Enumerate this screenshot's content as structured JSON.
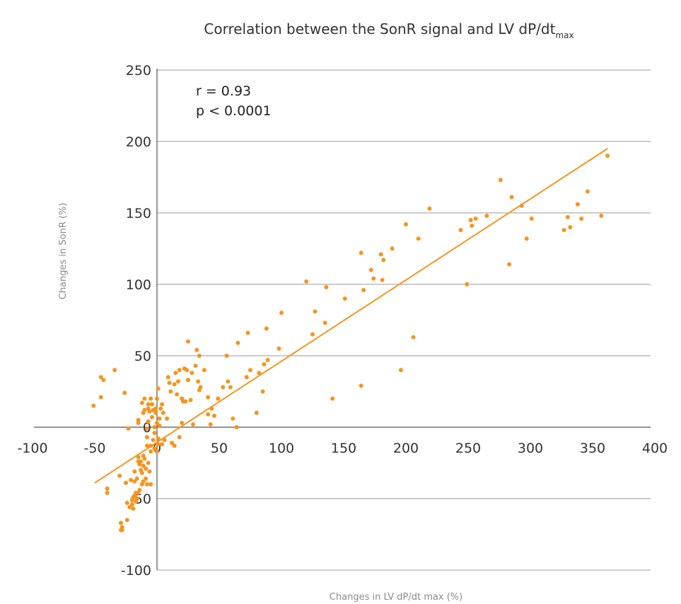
{
  "chart_data": {
    "type": "scatter",
    "title": "Correlation between the SonR signal and LV dP/dt",
    "title_subscript": "max",
    "xlabel": "Changes in LV dP/dt max (%)",
    "ylabel": "Changes in SonR (%)",
    "xlim": [
      -100,
      400
    ],
    "ylim": [
      -100,
      250
    ],
    "x_ticks": [
      "-100",
      "-50",
      "0",
      "50",
      "100",
      "150",
      "200",
      "250",
      "300",
      "350",
      "400"
    ],
    "y_ticks": [
      "250",
      "200",
      "150",
      "100",
      "50",
      "0",
      "-50",
      "-100"
    ],
    "grid": "horizontal",
    "annotations": [
      "r = 0.93",
      "p < 0.0001"
    ],
    "point_color": "#f7941d",
    "line_color": "#f7941d",
    "trendline": {
      "x": [
        -50,
        362
      ],
      "y": [
        -39,
        195
      ]
    },
    "points": [
      [
        -51,
        15
      ],
      [
        -45,
        21
      ],
      [
        -45,
        35
      ],
      [
        -43,
        33
      ],
      [
        -40,
        -43
      ],
      [
        -40,
        -46
      ],
      [
        -34,
        40
      ],
      [
        -30,
        -34
      ],
      [
        -29,
        -67
      ],
      [
        -29,
        -72
      ],
      [
        -28,
        -70
      ],
      [
        -28,
        -72
      ],
      [
        -26,
        24
      ],
      [
        -25,
        -39
      ],
      [
        -24,
        -53
      ],
      [
        -24,
        -65
      ],
      [
        -23,
        -1
      ],
      [
        -22,
        -56
      ],
      [
        -21,
        -37
      ],
      [
        -20,
        -51
      ],
      [
        -20,
        -54
      ],
      [
        -19,
        -49
      ],
      [
        -19,
        -57
      ],
      [
        -18,
        -31
      ],
      [
        -18,
        -38
      ],
      [
        -18,
        -48
      ],
      [
        -17,
        -52
      ],
      [
        -17,
        -46
      ],
      [
        -16,
        -36
      ],
      [
        -16,
        -50
      ],
      [
        -15,
        -21
      ],
      [
        -15,
        -24
      ],
      [
        -15,
        -46
      ],
      [
        -15,
        3
      ],
      [
        -15,
        5
      ],
      [
        -14,
        -26
      ],
      [
        -14,
        -44
      ],
      [
        -13,
        -24
      ],
      [
        -13,
        -30
      ],
      [
        -12,
        -32
      ],
      [
        -12,
        -40
      ],
      [
        -12,
        17
      ],
      [
        -11,
        -20
      ],
      [
        -11,
        -38
      ],
      [
        -11,
        -27
      ],
      [
        -11,
        10
      ],
      [
        -10,
        12
      ],
      [
        -10,
        20
      ],
      [
        -10,
        -22
      ],
      [
        -9,
        -36
      ],
      [
        -9,
        -29
      ],
      [
        -8,
        -40
      ],
      [
        -8,
        -7
      ],
      [
        -8,
        -1
      ],
      [
        -8,
        -13
      ],
      [
        -7,
        4
      ],
      [
        -7,
        13
      ],
      [
        -7,
        16
      ],
      [
        -7,
        -25
      ],
      [
        -6,
        11
      ],
      [
        -6,
        -31
      ],
      [
        -5,
        -40
      ],
      [
        -5,
        -13
      ],
      [
        -5,
        -17
      ],
      [
        -5,
        20
      ],
      [
        -4,
        16
      ],
      [
        -4,
        7
      ],
      [
        -3,
        12
      ],
      [
        -3,
        -9
      ],
      [
        -2,
        0
      ],
      [
        -2,
        -4
      ],
      [
        -2,
        -15
      ],
      [
        -1,
        10
      ],
      [
        -1,
        13
      ],
      [
        0,
        20
      ],
      [
        0,
        3
      ],
      [
        0,
        -17
      ],
      [
        1,
        27
      ],
      [
        1,
        -8
      ],
      [
        1,
        -12
      ],
      [
        2,
        1
      ],
      [
        2,
        6
      ],
      [
        3,
        13
      ],
      [
        4,
        -12
      ],
      [
        4,
        16
      ],
      [
        5,
        10
      ],
      [
        6,
        -9
      ],
      [
        8,
        6
      ],
      [
        9,
        35
      ],
      [
        10,
        31
      ],
      [
        11,
        25
      ],
      [
        12,
        -11
      ],
      [
        14,
        30
      ],
      [
        14,
        -13
      ],
      [
        15,
        38
      ],
      [
        16,
        23
      ],
      [
        17,
        32
      ],
      [
        18,
        -7
      ],
      [
        18,
        40
      ],
      [
        20,
        20
      ],
      [
        20,
        3
      ],
      [
        21,
        18
      ],
      [
        22,
        41
      ],
      [
        23,
        18
      ],
      [
        24,
        40
      ],
      [
        25,
        33
      ],
      [
        25,
        60
      ],
      [
        27,
        19
      ],
      [
        28,
        38
      ],
      [
        29,
        2
      ],
      [
        31,
        43
      ],
      [
        32,
        54
      ],
      [
        33,
        32
      ],
      [
        34,
        26
      ],
      [
        34,
        50
      ],
      [
        35,
        28
      ],
      [
        38,
        40
      ],
      [
        41,
        9
      ],
      [
        41,
        21
      ],
      [
        43,
        2
      ],
      [
        44,
        13
      ],
      [
        46,
        8
      ],
      [
        49,
        20
      ],
      [
        53,
        28
      ],
      [
        56,
        50
      ],
      [
        57,
        32
      ],
      [
        59,
        28
      ],
      [
        61,
        6
      ],
      [
        64,
        0
      ],
      [
        65,
        59
      ],
      [
        72,
        35
      ],
      [
        73,
        66
      ],
      [
        75,
        40
      ],
      [
        80,
        10
      ],
      [
        82,
        38
      ],
      [
        85,
        25
      ],
      [
        86,
        44
      ],
      [
        88,
        69
      ],
      [
        89,
        47
      ],
      [
        98,
        55
      ],
      [
        100,
        80
      ],
      [
        120,
        102
      ],
      [
        125,
        65
      ],
      [
        127,
        81
      ],
      [
        135,
        73
      ],
      [
        136,
        98
      ],
      [
        141,
        20
      ],
      [
        151,
        90
      ],
      [
        164,
        29
      ],
      [
        164,
        122
      ],
      [
        166,
        96
      ],
      [
        172,
        110
      ],
      [
        174,
        104
      ],
      [
        180,
        121
      ],
      [
        181,
        103
      ],
      [
        182,
        117
      ],
      [
        189,
        125
      ],
      [
        196,
        40
      ],
      [
        200,
        142
      ],
      [
        206,
        63
      ],
      [
        210,
        132
      ],
      [
        219,
        153
      ],
      [
        244,
        138
      ],
      [
        249,
        100
      ],
      [
        252,
        145
      ],
      [
        253,
        141
      ],
      [
        256,
        146
      ],
      [
        265,
        148
      ],
      [
        276,
        173
      ],
      [
        283,
        114
      ],
      [
        285,
        161
      ],
      [
        293,
        155
      ],
      [
        297,
        132
      ],
      [
        301,
        146
      ],
      [
        327,
        138
      ],
      [
        330,
        147
      ],
      [
        332,
        140
      ],
      [
        338,
        156
      ],
      [
        341,
        146
      ],
      [
        346,
        165
      ],
      [
        357,
        148
      ],
      [
        362,
        190
      ]
    ]
  }
}
